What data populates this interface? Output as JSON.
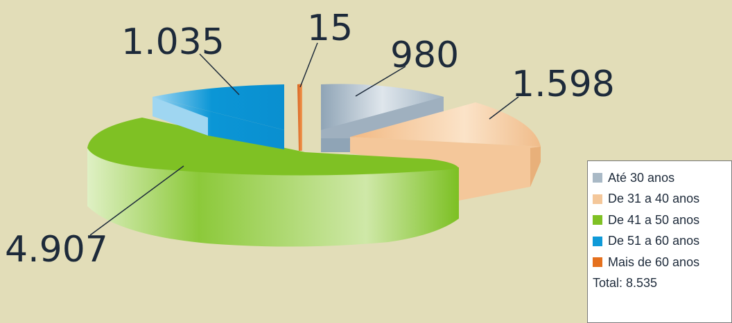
{
  "chart_data": {
    "type": "pie",
    "style": "3d-exploded",
    "series": [
      {
        "name": "Até 30 anos",
        "value": 980,
        "label": "980",
        "color": "#a9b9c6"
      },
      {
        "name": "De 31 a 40 anos",
        "value": 1598,
        "label": "1.598",
        "color": "#f4c79a"
      },
      {
        "name": "De 41 a 50 anos",
        "value": 4907,
        "label": "4.907",
        "color": "#7fc124"
      },
      {
        "name": "De 51 a 60 anos",
        "value": 1035,
        "label": "1.035",
        "color": "#0f9ad8"
      },
      {
        "name": "Mais de 60 anos",
        "value": 15,
        "label": "15",
        "color": "#e5701d"
      }
    ],
    "total_label": "Total: 8.535",
    "legend_position": "bottom-right"
  },
  "colors": {
    "background": "#e2ddb8"
  }
}
